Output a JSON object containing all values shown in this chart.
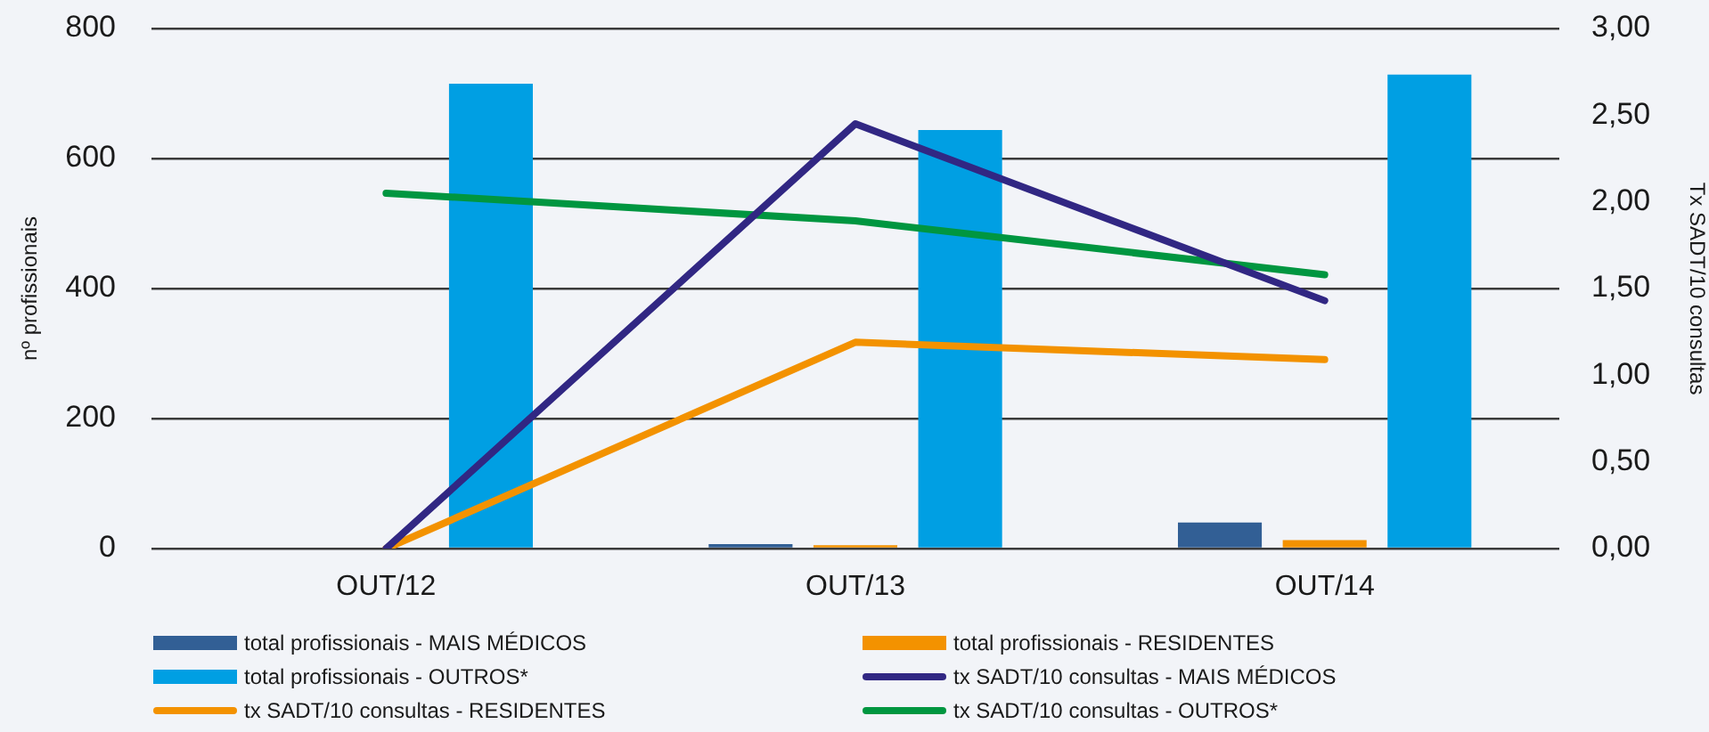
{
  "chart_data": {
    "type": "bar",
    "categories": [
      "OUT/12",
      "OUT/13",
      "OUT/14"
    ],
    "series": [
      {
        "name": "total profissionais - MAIS MÉDICOS",
        "color": "#325f95",
        "values": [
          0,
          7,
          40
        ]
      },
      {
        "name": "total profissionais - RESIDENTES",
        "color": "#f39200",
        "values": [
          0,
          5,
          13
        ]
      },
      {
        "name": "total profissionais - OUTROS*",
        "color": "#009fe3",
        "values": [
          715,
          644,
          729
        ]
      },
      {
        "name": "tx SADT/10 consultas - MAIS MÉDICOS",
        "type": "line",
        "axis": "y2",
        "color": "#312783",
        "values": [
          0,
          2.45,
          1.43
        ]
      },
      {
        "name": "tx SADT/10 consultas - RESIDENTES",
        "type": "line",
        "axis": "y2",
        "color": "#f39200",
        "values": [
          0,
          1.19,
          1.09
        ]
      },
      {
        "name": "tx SADT/10 consultas - OUTROS*",
        "type": "line",
        "axis": "y2",
        "color": "#009640",
        "values": [
          2.05,
          1.89,
          1.58
        ]
      }
    ],
    "ylabel": "nº profissionais",
    "y2label": "Tx SADT/10 consultas",
    "ylim": [
      0,
      800
    ],
    "yticks": [
      0,
      200,
      400,
      600,
      800
    ],
    "y2lim": [
      0,
      3
    ],
    "y2ticks": [
      {
        "value": 0,
        "label": "0,00"
      },
      {
        "value": 0.5,
        "label": "0,50"
      },
      {
        "value": 1,
        "label": "1,00"
      },
      {
        "value": 1.5,
        "label": "1,50"
      },
      {
        "value": 2,
        "label": "2,00"
      },
      {
        "value": 2.5,
        "label": "2,50"
      },
      {
        "value": 3,
        "label": "3,00"
      }
    ],
    "grid": "y",
    "legend": "bottom"
  }
}
